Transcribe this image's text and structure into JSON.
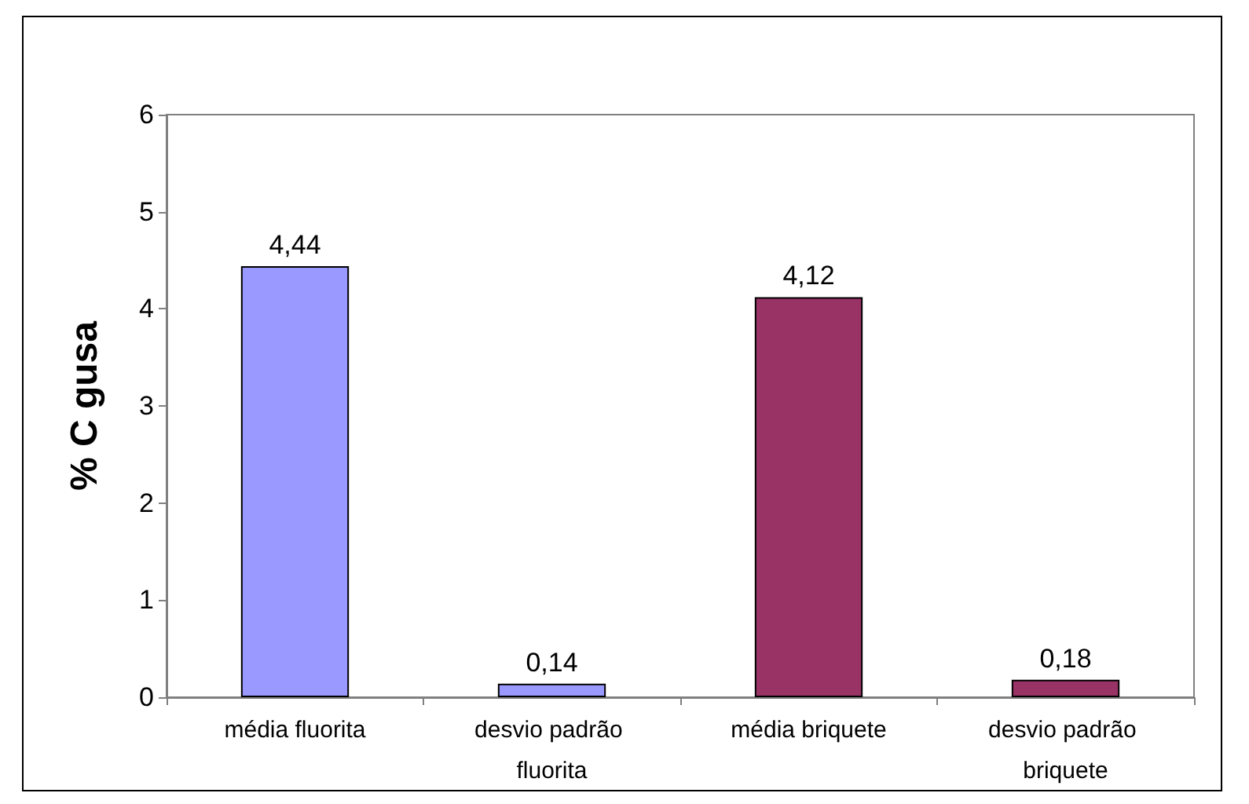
{
  "chart_data": {
    "type": "bar",
    "ylabel": "% C gusa",
    "categories": [
      "média fluorita",
      "desvio padrão fluorita",
      "média briquete",
      "desvio padrão briquete"
    ],
    "values": [
      4.44,
      0.14,
      4.12,
      0.18
    ],
    "colors": [
      "#9999ff",
      "#9999ff",
      "#993366",
      "#993366"
    ],
    "value_labels": [
      "4,44",
      "0,14",
      "4,12",
      "0,18"
    ],
    "ylim": [
      0,
      6
    ],
    "yticks": [
      0,
      1,
      2,
      3,
      4,
      5,
      6
    ]
  }
}
